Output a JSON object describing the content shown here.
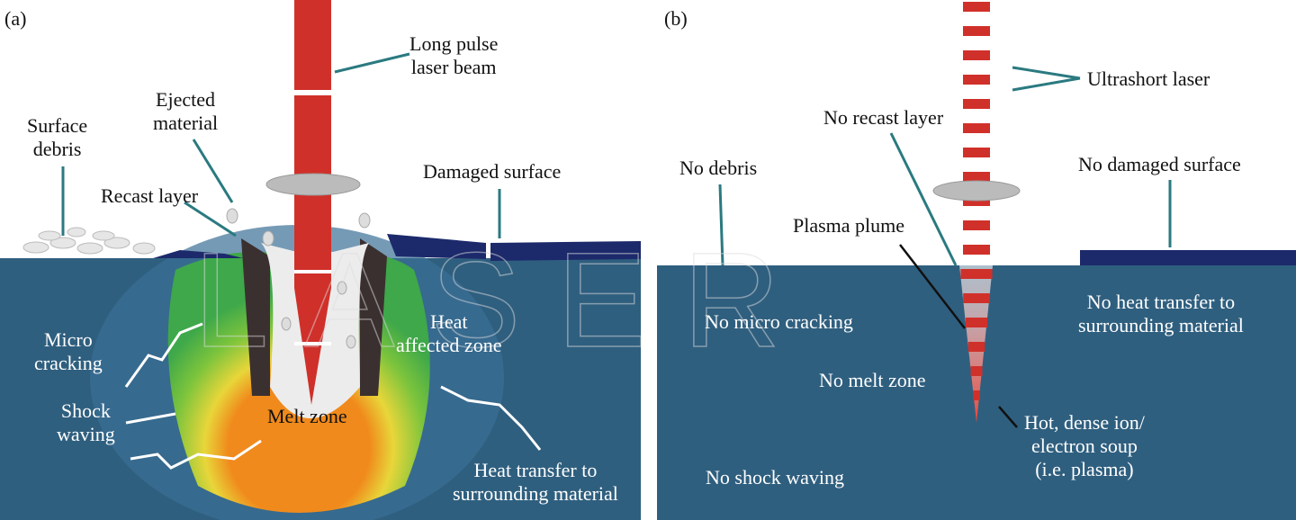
{
  "panel_a": {
    "tag": "(a)",
    "labels": {
      "beam": "Long pulse\nlaser beam",
      "ejected": "Ejected\nmaterial",
      "debris": "Surface\ndebris",
      "recast": "Recast layer",
      "damaged": "Damaged surface",
      "micro": "Micro\ncracking",
      "haz": "Heat\naffected zone",
      "shock": "Shock\nwaving",
      "melt": "Melt zone",
      "transfer": "Heat transfer to\nsurrounding material"
    }
  },
  "panel_b": {
    "tag": "(b)",
    "labels": {
      "beam": "Ultrashort laser",
      "recast": "No recast layer",
      "debris": "No debris",
      "damaged": "No damaged surface",
      "plume": "Plasma plume",
      "micro": "No micro cracking",
      "transfer": "No heat transfer to\nsurrounding material",
      "melt": "No melt zone",
      "plasma": "Hot, dense ion/\nelectron soup\n(i.e. plasma)",
      "shock": "No shock waving"
    }
  },
  "watermark": "LASER",
  "colors": {
    "material": "#2f5f7f",
    "beam": "#d0302a",
    "leader": "#2a7a80",
    "surface_dark": "#1c2a6b"
  }
}
